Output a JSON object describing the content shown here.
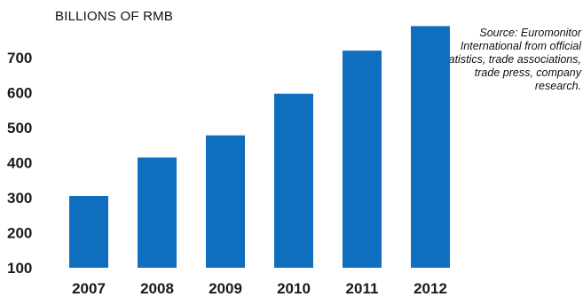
{
  "chart_data": {
    "type": "bar",
    "ylabel": "BILLIONS OF RMB",
    "source": "Source: Euromonitor International from official statistics, trade associations, trade press, company research.",
    "categories": [
      "2007",
      "2008",
      "2009",
      "2010",
      "2011",
      "2012"
    ],
    "values": [
      305,
      415,
      478,
      597,
      720,
      790
    ],
    "ylim": [
      100,
      790
    ],
    "yticks": [
      "100",
      "200",
      "300",
      "400",
      "500",
      "600",
      "700"
    ],
    "bar_color": "#0f6fbe",
    "grid": false
  }
}
